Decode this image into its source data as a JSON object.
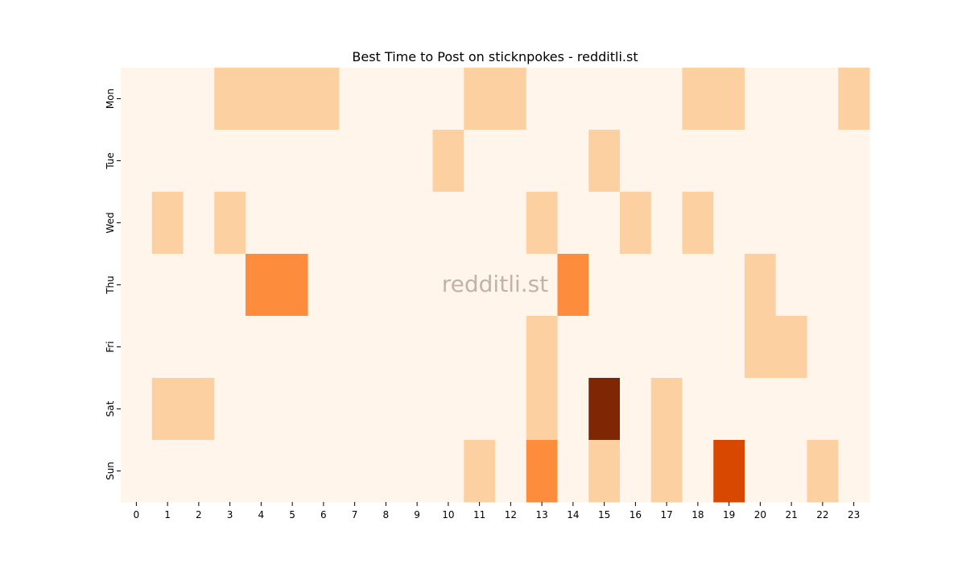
{
  "chart_data": {
    "type": "heatmap",
    "title": "Best Time to Post on sticknpokes - redditli.st",
    "watermark": "redditli.st",
    "x_categories": [
      "0",
      "1",
      "2",
      "3",
      "4",
      "5",
      "6",
      "7",
      "8",
      "9",
      "10",
      "11",
      "12",
      "13",
      "14",
      "15",
      "16",
      "17",
      "18",
      "19",
      "20",
      "21",
      "22",
      "23"
    ],
    "y_categories": [
      "Mon",
      "Tue",
      "Wed",
      "Thu",
      "Fri",
      "Sat",
      "Sun"
    ],
    "values": [
      [
        0,
        0,
        0,
        1,
        1,
        1,
        1,
        0,
        0,
        0,
        0,
        1,
        1,
        0,
        0,
        0,
        0,
        0,
        1,
        1,
        0,
        0,
        0,
        1
      ],
      [
        0,
        0,
        0,
        0,
        0,
        0,
        0,
        0,
        0,
        0,
        1,
        0,
        0,
        0,
        0,
        1,
        0,
        0,
        0,
        0,
        0,
        0,
        0,
        0
      ],
      [
        0,
        1,
        0,
        1,
        0,
        0,
        0,
        0,
        0,
        0,
        0,
        0,
        0,
        1,
        0,
        0,
        1,
        0,
        1,
        0,
        0,
        0,
        0,
        0
      ],
      [
        0,
        0,
        0,
        0,
        3,
        3,
        0,
        0,
        0,
        0,
        0,
        0,
        0,
        0,
        3,
        0,
        0,
        0,
        0,
        0,
        1,
        0,
        0,
        0
      ],
      [
        0,
        0,
        0,
        0,
        0,
        0,
        0,
        0,
        0,
        0,
        0,
        0,
        0,
        1,
        0,
        0,
        0,
        0,
        0,
        0,
        1,
        1,
        0,
        0
      ],
      [
        0,
        1,
        1,
        0,
        0,
        0,
        0,
        0,
        0,
        0,
        0,
        0,
        0,
        1,
        0,
        6,
        0,
        1,
        0,
        0,
        0,
        0,
        0,
        0
      ],
      [
        0,
        0,
        0,
        0,
        0,
        0,
        0,
        0,
        0,
        0,
        0,
        1,
        0,
        3,
        0,
        1,
        0,
        1,
        0,
        5,
        0,
        0,
        1,
        0
      ]
    ],
    "color_scale": {
      "0": "#fff5eb",
      "1": "#fdd0a2",
      "3": "#fd8d3c",
      "5": "#d94801",
      "6": "#7f2704"
    },
    "grid": false,
    "legend": "none"
  }
}
